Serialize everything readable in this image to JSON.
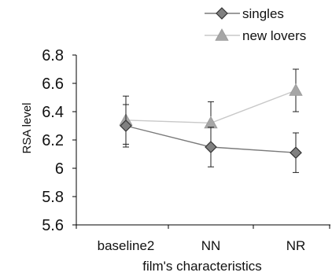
{
  "chart_data": {
    "type": "line",
    "categories": [
      "baseline2",
      "NN",
      "NR"
    ],
    "xlabel": "film's characteristics",
    "ylabel": "RSA level",
    "ylim": [
      5.6,
      6.8
    ],
    "yticks": [
      "5.6",
      "5.8",
      "6",
      "6.2",
      "6.4",
      "6.6",
      "6.8"
    ],
    "legend_position": "top-right",
    "series": [
      {
        "name": "singles",
        "marker": "diamond",
        "color": "#808080",
        "line_color": "#7a7a7a",
        "values": [
          6.3,
          6.15,
          6.11
        ],
        "error": [
          0.15,
          0.14,
          0.14
        ]
      },
      {
        "name": "new lovers",
        "marker": "triangle",
        "color": "#a6a6a6",
        "line_color": "#c8c8c8",
        "values": [
          6.34,
          6.32,
          6.55
        ],
        "error": [
          0.17,
          0.15,
          0.15
        ]
      }
    ]
  }
}
